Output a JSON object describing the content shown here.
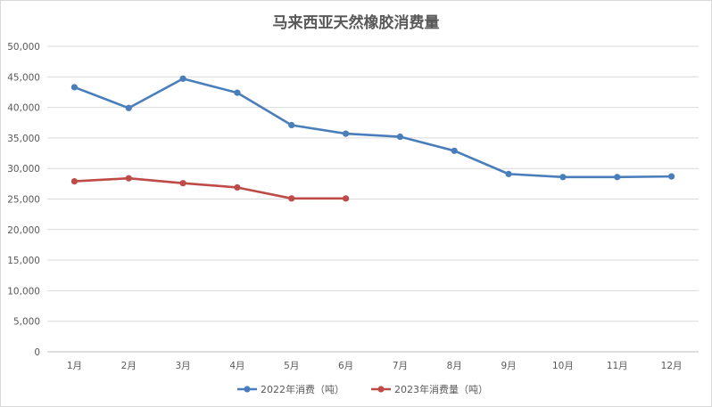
{
  "chart_data": {
    "type": "line",
    "title": "马来西亚天然橡胶消费量",
    "categories": [
      "1月",
      "2月",
      "3月",
      "4月",
      "5月",
      "6月",
      "7月",
      "8月",
      "9月",
      "10月",
      "11月",
      "12月"
    ],
    "ylim": [
      0,
      50000
    ],
    "yticks": [
      "0",
      "5,000",
      "10,000",
      "15,000",
      "20,000",
      "25,000",
      "30,000",
      "35,000",
      "40,000",
      "45,000",
      "50,000"
    ],
    "grid": true,
    "legend_position": "bottom",
    "series": [
      {
        "name": "2022年消费（吨）",
        "color": "#4a7ebb",
        "values": [
          43300,
          39900,
          44700,
          42400,
          37100,
          35700,
          35200,
          32900,
          29100,
          28600,
          28600,
          28700
        ]
      },
      {
        "name": "2023年消费量（吨）",
        "color": "#be4b48",
        "values": [
          27900,
          28400,
          27600,
          26900,
          25100,
          25100,
          null,
          null,
          null,
          null,
          null,
          null
        ]
      }
    ]
  }
}
